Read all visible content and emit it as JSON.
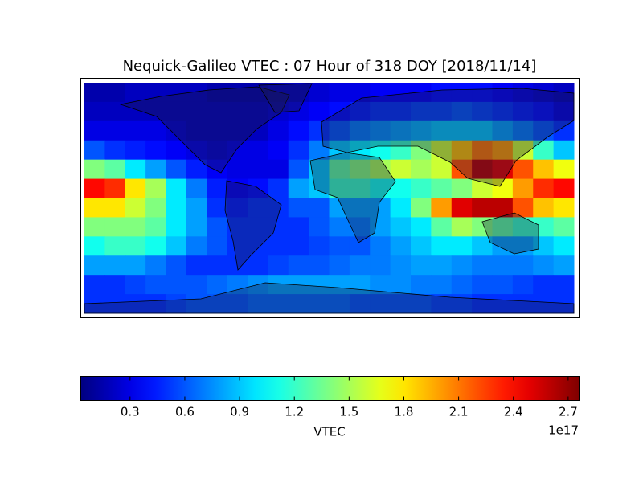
{
  "chart_data": {
    "type": "heatmap",
    "title": "Nequick-Galileo VTEC : 07 Hour of 318 DOY [2018/11/14]",
    "colormap": "jet",
    "colorbar_label": "VTEC",
    "colorbar_offset": "1e17",
    "clim": [
      0.03,
      2.76
    ],
    "cticks": [
      0.3,
      0.6,
      0.9,
      1.2,
      1.5,
      1.8,
      2.1,
      2.4,
      2.7
    ],
    "z": [
      [
        0.15,
        0.15,
        0.2,
        0.2,
        0.2,
        0.2,
        0.15,
        0.15,
        0.15,
        0.2,
        0.2,
        0.25,
        0.3,
        0.3,
        0.35,
        0.35,
        0.35,
        0.4,
        0.4,
        0.4,
        0.35,
        0.3,
        0.25,
        0.2
      ],
      [
        0.2,
        0.2,
        0.2,
        0.2,
        0.2,
        0.2,
        0.2,
        0.2,
        0.2,
        0.25,
        0.3,
        0.35,
        0.4,
        0.45,
        0.5,
        0.5,
        0.55,
        0.55,
        0.6,
        0.55,
        0.5,
        0.45,
        0.4,
        0.3
      ],
      [
        0.3,
        0.3,
        0.3,
        0.3,
        0.25,
        0.2,
        0.2,
        0.2,
        0.2,
        0.3,
        0.4,
        0.5,
        0.6,
        0.7,
        0.75,
        0.8,
        0.85,
        0.9,
        0.9,
        0.9,
        0.8,
        0.7,
        0.6,
        0.5
      ],
      [
        0.6,
        0.5,
        0.45,
        0.4,
        0.35,
        0.3,
        0.25,
        0.3,
        0.3,
        0.35,
        0.5,
        0.7,
        0.9,
        1.0,
        1.1,
        1.2,
        1.4,
        1.6,
        1.9,
        2.1,
        2.0,
        1.6,
        1.2,
        0.9
      ],
      [
        1.4,
        1.3,
        1.0,
        0.8,
        0.6,
        0.45,
        0.35,
        0.3,
        0.3,
        0.3,
        0.6,
        0.9,
        1.3,
        1.4,
        1.5,
        1.6,
        1.5,
        1.6,
        2.2,
        2.6,
        2.5,
        2.2,
        1.9,
        1.7
      ],
      [
        2.4,
        2.3,
        1.8,
        1.5,
        1.0,
        0.7,
        0.45,
        0.35,
        0.4,
        0.5,
        0.8,
        0.9,
        1.2,
        1.2,
        1.1,
        1.1,
        1.2,
        1.3,
        1.4,
        1.6,
        1.7,
        2.0,
        2.3,
        2.4
      ],
      [
        1.8,
        1.8,
        1.6,
        1.4,
        1.0,
        0.8,
        0.5,
        0.45,
        0.5,
        0.5,
        0.6,
        0.6,
        0.8,
        0.8,
        0.8,
        1.0,
        1.4,
        2.0,
        2.5,
        2.6,
        2.6,
        2.2,
        1.9,
        1.8
      ],
      [
        1.4,
        1.4,
        1.4,
        1.3,
        1.0,
        0.8,
        0.6,
        0.5,
        0.5,
        0.5,
        0.5,
        0.6,
        0.7,
        0.7,
        0.8,
        0.9,
        1.0,
        1.3,
        1.5,
        1.4,
        1.3,
        1.2,
        1.2,
        1.3
      ],
      [
        1.1,
        1.2,
        1.2,
        1.1,
        0.9,
        0.7,
        0.6,
        0.5,
        0.5,
        0.5,
        0.5,
        0.55,
        0.6,
        0.6,
        0.7,
        0.8,
        0.9,
        1.0,
        1.0,
        0.9,
        0.8,
        0.8,
        0.9,
        1.0
      ],
      [
        0.8,
        0.8,
        0.8,
        0.7,
        0.6,
        0.5,
        0.5,
        0.5,
        0.5,
        0.55,
        0.6,
        0.6,
        0.65,
        0.7,
        0.7,
        0.75,
        0.8,
        0.8,
        0.75,
        0.7,
        0.7,
        0.7,
        0.75,
        0.8
      ],
      [
        0.5,
        0.5,
        0.55,
        0.6,
        0.6,
        0.6,
        0.65,
        0.7,
        0.75,
        0.8,
        0.8,
        0.8,
        0.8,
        0.8,
        0.75,
        0.75,
        0.7,
        0.7,
        0.65,
        0.6,
        0.6,
        0.55,
        0.5,
        0.5
      ],
      [
        0.5,
        0.5,
        0.5,
        0.5,
        0.55,
        0.6,
        0.6,
        0.6,
        0.65,
        0.65,
        0.65,
        0.65,
        0.65,
        0.6,
        0.6,
        0.6,
        0.6,
        0.55,
        0.55,
        0.5,
        0.5,
        0.5,
        0.5,
        0.5
      ]
    ]
  }
}
